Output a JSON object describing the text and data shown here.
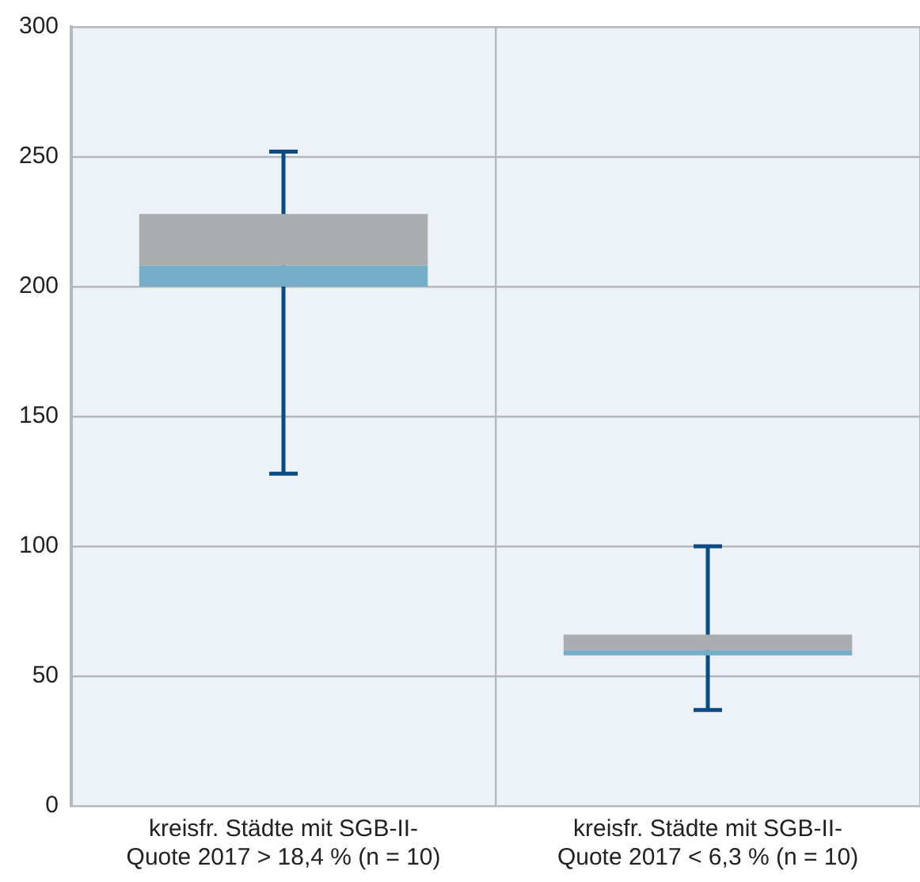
{
  "chart_data": {
    "type": "box",
    "categories": [
      "kreisfr. Städte mit SGB-II-Quote 2017 > 18,4 % (n = 10)",
      "kreisfr. Städte mit SGB-II-Quote 2017 < 6,3 % (n = 10)"
    ],
    "series": [
      {
        "color": "#76aec8",
        "boxes": [
          {
            "low": 128,
            "q1": 200,
            "median": 208,
            "q3": 228,
            "high": 252
          },
          {
            "low": 37,
            "q1": 58,
            "median": 60,
            "q3": 66,
            "high": 100
          }
        ]
      }
    ],
    "ylim": [
      0,
      300
    ],
    "yticks": [
      0,
      50,
      100,
      150,
      200,
      250,
      300
    ],
    "grid": true
  }
}
